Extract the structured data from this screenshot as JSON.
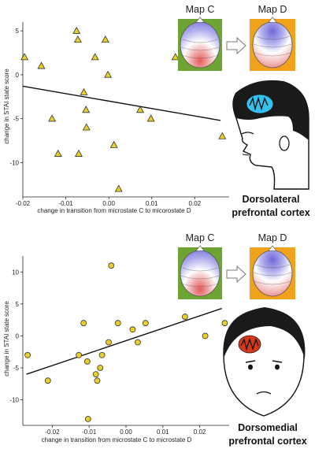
{
  "chart_data": [
    {
      "type": "scatter",
      "xlabel": "change in transition from microstate C to micorostate D",
      "ylabel": "change in STAI state score",
      "xlim": [
        -0.02,
        0.028
      ],
      "ylim": [
        -14,
        6
      ],
      "xticks": [
        -0.02,
        -0.01,
        0.0,
        0.01,
        0.02
      ],
      "xtick_labels": [
        "-0.02",
        "-0.01",
        "0.00",
        "0.01",
        "0.02"
      ],
      "yticks": [
        5,
        0,
        -5,
        -10
      ],
      "ytick_labels": [
        "5",
        "0",
        "-5",
        "-10"
      ],
      "marker": "triangle",
      "marker_color": "#e8cf2b",
      "points": [
        {
          "x": -0.0196,
          "y": 2
        },
        {
          "x": -0.0157,
          "y": 1
        },
        {
          "x": -0.0132,
          "y": -5
        },
        {
          "x": -0.0118,
          "y": -9
        },
        {
          "x": -0.0075,
          "y": 5
        },
        {
          "x": -0.0072,
          "y": 4
        },
        {
          "x": -0.007,
          "y": -9
        },
        {
          "x": -0.0058,
          "y": -2
        },
        {
          "x": -0.0053,
          "y": -4
        },
        {
          "x": -0.0052,
          "y": -6
        },
        {
          "x": -0.0032,
          "y": 2
        },
        {
          "x": -0.0008,
          "y": 4
        },
        {
          "x": -0.0002,
          "y": 0
        },
        {
          "x": 0.0012,
          "y": -8
        },
        {
          "x": 0.0023,
          "y": -13
        },
        {
          "x": 0.0073,
          "y": -4
        },
        {
          "x": 0.0098,
          "y": -5
        },
        {
          "x": 0.0155,
          "y": 2
        },
        {
          "x": 0.0264,
          "y": -7
        }
      ],
      "regression": {
        "x": [
          -0.02,
          0.026
        ],
        "y": [
          -1.3,
          -5.2
        ]
      },
      "grid": false,
      "region_label": [
        "Dorsolateral",
        "prefrontal cortex"
      ],
      "maps": [
        "Map C",
        "Map D"
      ],
      "map_colors": {
        "c_background": "#6ea434",
        "d_background": "#f0a21d"
      },
      "head_mark_color": "#35c1ec"
    },
    {
      "type": "scatter",
      "xlabel": "change in transition from microstate C to microstate D",
      "ylabel": "change in STAI state score",
      "xlim": [
        -0.028,
        0.028
      ],
      "ylim": [
        -14,
        12.5
      ],
      "xticks": [
        -0.02,
        -0.01,
        0.0,
        0.01,
        0.02
      ],
      "xtick_labels": [
        "-0.02",
        "-0.01",
        "0.00",
        "0.01",
        "0.02"
      ],
      "yticks": [
        10,
        5,
        0,
        -5,
        -10
      ],
      "ytick_labels": [
        "10",
        "5",
        "0",
        "-5",
        "-10"
      ],
      "marker": "circle",
      "marker_color": "#e8cf2b",
      "points": [
        {
          "x": -0.0267,
          "y": -3
        },
        {
          "x": -0.0212,
          "y": -7
        },
        {
          "x": -0.0128,
          "y": -3
        },
        {
          "x": -0.0115,
          "y": 2
        },
        {
          "x": -0.0105,
          "y": -4
        },
        {
          "x": -0.0103,
          "y": -13
        },
        {
          "x": -0.0082,
          "y": -6
        },
        {
          "x": -0.0078,
          "y": -7
        },
        {
          "x": -0.007,
          "y": -5
        },
        {
          "x": -0.0065,
          "y": -3
        },
        {
          "x": -0.0047,
          "y": -1
        },
        {
          "x": -0.004,
          "y": 11
        },
        {
          "x": -0.0022,
          "y": 2
        },
        {
          "x": 0.0018,
          "y": 1
        },
        {
          "x": 0.0032,
          "y": -1
        },
        {
          "x": 0.0053,
          "y": 2
        },
        {
          "x": 0.016,
          "y": 3
        },
        {
          "x": 0.0215,
          "y": 0
        },
        {
          "x": 0.0268,
          "y": 2
        }
      ],
      "regression": {
        "x": [
          -0.027,
          0.026
        ],
        "y": [
          -6.0,
          4.3
        ]
      },
      "grid": false,
      "region_label": [
        "Dorsomedial",
        "prefrontal cortex"
      ],
      "maps": [
        "Map C",
        "Map D"
      ],
      "map_colors": {
        "c_background": "#6ea434",
        "d_background": "#f0a21d"
      },
      "head_mark_color": "#d8391a"
    }
  ]
}
